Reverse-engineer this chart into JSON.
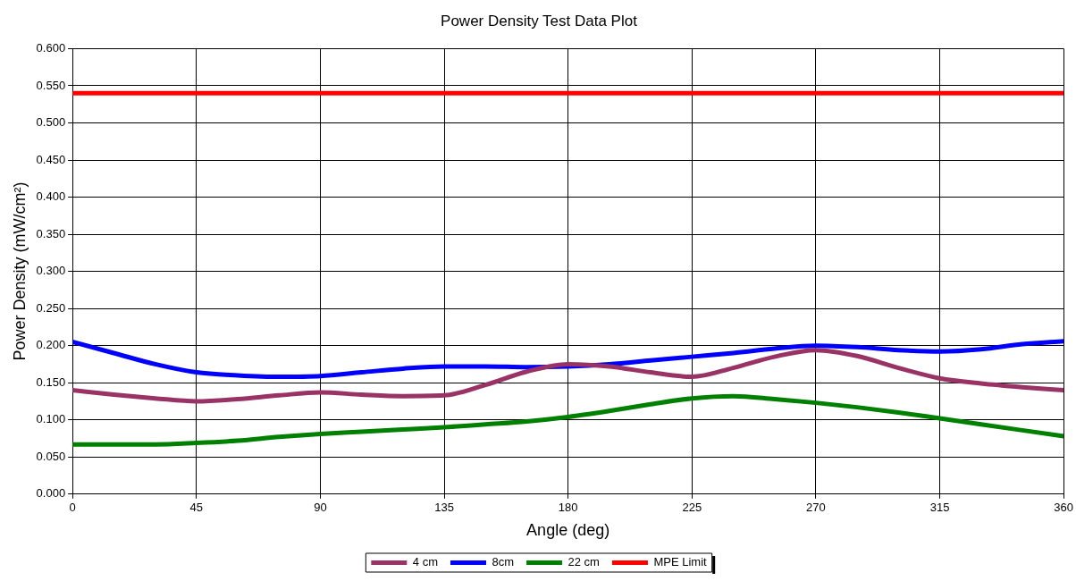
{
  "chart_data": {
    "type": "line",
    "title": "Power Density Test Data Plot",
    "xlabel": "Angle (deg)",
    "ylabel": "Power Density (mW/cm²)",
    "x": [
      0,
      15,
      30,
      45,
      60,
      75,
      90,
      105,
      120,
      135,
      150,
      165,
      180,
      195,
      210,
      225,
      240,
      255,
      270,
      285,
      300,
      315,
      330,
      345,
      360
    ],
    "series": [
      {
        "name": "4 cm",
        "color": "#993366",
        "values": [
          0.14,
          0.134,
          0.129,
          0.125,
          0.128,
          0.133,
          0.137,
          0.134,
          0.132,
          0.133,
          0.147,
          0.165,
          0.175,
          0.172,
          0.164,
          0.158,
          0.17,
          0.185,
          0.194,
          0.186,
          0.17,
          0.156,
          0.149,
          0.144,
          0.14
        ]
      },
      {
        "name": "8cm",
        "color": "#0000ff",
        "values": [
          0.205,
          0.19,
          0.175,
          0.164,
          0.16,
          0.158,
          0.159,
          0.164,
          0.169,
          0.172,
          0.172,
          0.171,
          0.172,
          0.175,
          0.18,
          0.185,
          0.19,
          0.196,
          0.2,
          0.198,
          0.194,
          0.192,
          0.195,
          0.202,
          0.206
        ]
      },
      {
        "name": "22 cm",
        "color": "#008000",
        "values": [
          0.067,
          0.067,
          0.067,
          0.069,
          0.072,
          0.077,
          0.081,
          0.084,
          0.087,
          0.09,
          0.094,
          0.098,
          0.104,
          0.112,
          0.121,
          0.129,
          0.132,
          0.128,
          0.123,
          0.117,
          0.11,
          0.102,
          0.094,
          0.086,
          0.078
        ]
      },
      {
        "name": "MPE Limit",
        "color": "#ff0000",
        "values": [
          0.54,
          0.54,
          0.54,
          0.54,
          0.54,
          0.54,
          0.54,
          0.54,
          0.54,
          0.54,
          0.54,
          0.54,
          0.54,
          0.54,
          0.54,
          0.54,
          0.54,
          0.54,
          0.54,
          0.54,
          0.54,
          0.54,
          0.54,
          0.54,
          0.54
        ]
      }
    ],
    "xlim": [
      0,
      360
    ],
    "xticks": [
      0,
      45,
      90,
      135,
      180,
      225,
      270,
      315,
      360
    ],
    "ylim": [
      0,
      0.6
    ],
    "yticks": [
      {
        "value": 0,
        "label": "0.000"
      },
      {
        "value": 0.05,
        "label": "0.050"
      },
      {
        "value": 0.1,
        "label": "0.100"
      },
      {
        "value": 0.15,
        "label": "0.150"
      },
      {
        "value": 0.2,
        "label": "0.200"
      },
      {
        "value": 0.25,
        "label": "0.250"
      },
      {
        "value": 0.3,
        "label": "0.300"
      },
      {
        "value": 0.35,
        "label": "0.350"
      },
      {
        "value": 0.4,
        "label": "0.400"
      },
      {
        "value": 0.45,
        "label": "0.450"
      },
      {
        "value": 0.5,
        "label": "0.500"
      },
      {
        "value": 0.55,
        "label": "0.550"
      },
      {
        "value": 0.6,
        "label": "0.600"
      }
    ],
    "grid": true,
    "legend": "bottom",
    "marker": "none",
    "line_style": "solid"
  }
}
